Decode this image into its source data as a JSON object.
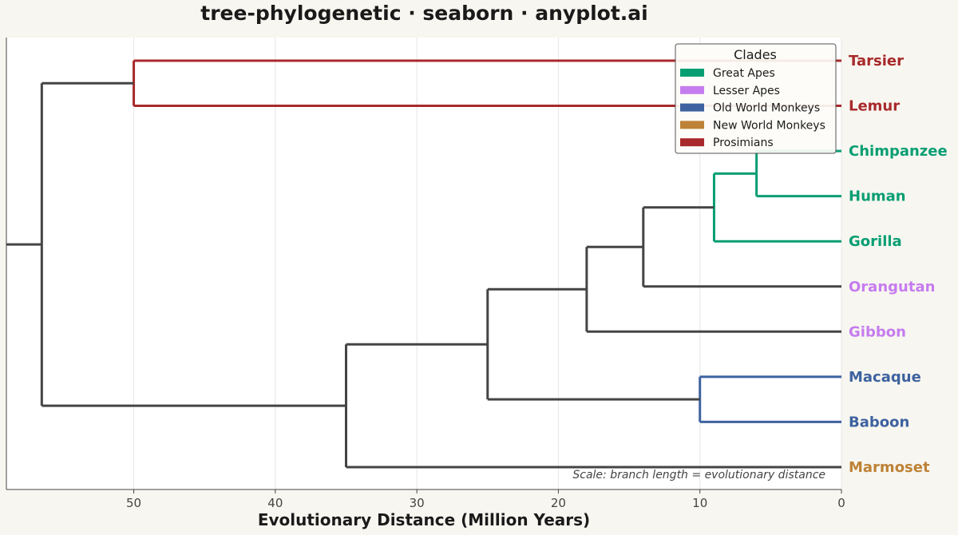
{
  "chart_data": {
    "type": "dendrogram",
    "title": "tree-phylogenetic · seaborn · anyplot.ai",
    "xlabel": "Evolutionary Distance (Million Years)",
    "xlim": [
      59,
      0
    ],
    "x_ticks": [
      50,
      40,
      30,
      20,
      10,
      0
    ],
    "grid": true,
    "annotation": "Scale: branch length = evolutionary distance",
    "legend": {
      "title": "Clades",
      "placement": "top-right",
      "entries": [
        {
          "label": "Great Apes",
          "color": "#089e73"
        },
        {
          "label": "Lesser Apes",
          "color": "#c57cef"
        },
        {
          "label": "Old World Monkeys",
          "color": "#3e62a0"
        },
        {
          "label": "New World Monkeys",
          "color": "#bd8236"
        },
        {
          "label": "Prosimians",
          "color": "#a8292b"
        }
      ]
    },
    "leaves": [
      {
        "name": "Tarsier",
        "color": "#a8292b"
      },
      {
        "name": "Lemur",
        "color": "#a8292b"
      },
      {
        "name": "Chimpanzee",
        "color": "#089e73"
      },
      {
        "name": "Human",
        "color": "#089e73"
      },
      {
        "name": "Gorilla",
        "color": "#089e73"
      },
      {
        "name": "Orangutan",
        "color": "#c57cef"
      },
      {
        "name": "Gibbon",
        "color": "#c57cef"
      },
      {
        "name": "Macaque",
        "color": "#3e62a0"
      },
      {
        "name": "Baboon",
        "color": "#3e62a0"
      },
      {
        "name": "Marmoset",
        "color": "#bd8236"
      }
    ],
    "tree": {
      "height": 56.5,
      "color": "#444444",
      "children": [
        {
          "height": 50,
          "color": "#a8292b",
          "children": [
            {
              "leaf": 0
            },
            {
              "leaf": 1
            }
          ]
        },
        {
          "height": 35,
          "color": "#444444",
          "children": [
            {
              "height": 25,
              "color": "#444444",
              "children": [
                {
                  "height": 18,
                  "color": "#444444",
                  "children": [
                    {
                      "height": 14,
                      "color": "#444444",
                      "children": [
                        {
                          "height": 9,
                          "color": "#089e73",
                          "children": [
                            {
                              "height": 6,
                              "color": "#089e73",
                              "children": [
                                {
                                  "leaf": 2
                                },
                                {
                                  "leaf": 3
                                }
                              ]
                            },
                            {
                              "leaf": 4
                            }
                          ]
                        },
                        {
                          "leaf": 5
                        }
                      ]
                    },
                    {
                      "leaf": 6
                    }
                  ]
                },
                {
                  "height": 10,
                  "color": "#3e62a0",
                  "children": [
                    {
                      "leaf": 7
                    },
                    {
                      "leaf": 8
                    }
                  ]
                }
              ]
            },
            {
              "leaf": 9
            }
          ]
        }
      ]
    }
  }
}
